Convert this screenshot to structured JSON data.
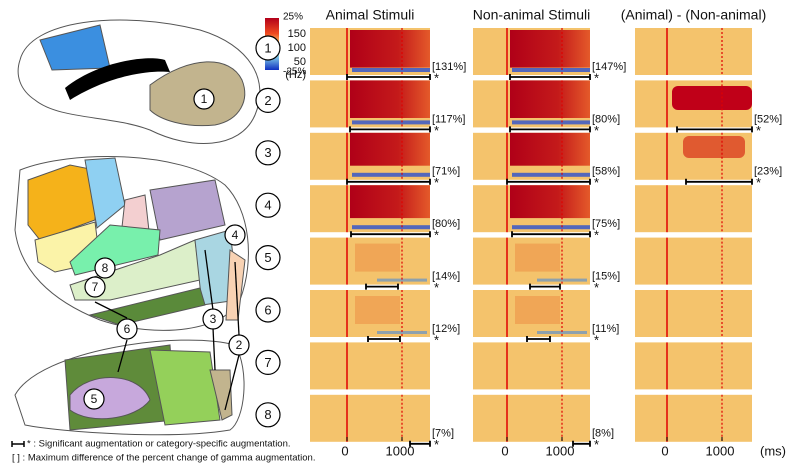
{
  "colorbar": {
    "max": "25%",
    "min": "-25%"
  },
  "columns": [
    {
      "title": "Animal Stimuli"
    },
    {
      "title": "Non-animal Stimuli"
    },
    {
      "title": "(Animal) - (Non-animal)"
    }
  ],
  "frequency_labels": [
    "150",
    "100",
    "50",
    "(Hz)"
  ],
  "time_labels": [
    "0",
    "1000"
  ],
  "time_unit": "(ms)",
  "significance_mark": "*",
  "rows": [
    {
      "number": "1",
      "animal": "[131%]",
      "non_animal": "[147%]"
    },
    {
      "number": "2",
      "animal": "[117%]",
      "non_animal": "[80%]",
      "difference": "[52%]"
    },
    {
      "number": "3",
      "animal": "[71%]",
      "non_animal": "[58%]",
      "difference": "[23%]"
    },
    {
      "number": "4",
      "animal": "[80%]",
      "non_animal": "[75%]"
    },
    {
      "number": "5",
      "animal": "[14%]",
      "non_animal": "[15%]"
    },
    {
      "number": "6",
      "animal": "[12%]",
      "non_animal": "[11%]"
    },
    {
      "number": "7"
    },
    {
      "number": "8",
      "animal": "[7%]",
      "non_animal": "[8%]"
    }
  ],
  "legend": [
    "* : Significant augmentation or category-specific augmentation.",
    "[ ] : Maximum difference of the percent change of gamma augmentation."
  ]
}
